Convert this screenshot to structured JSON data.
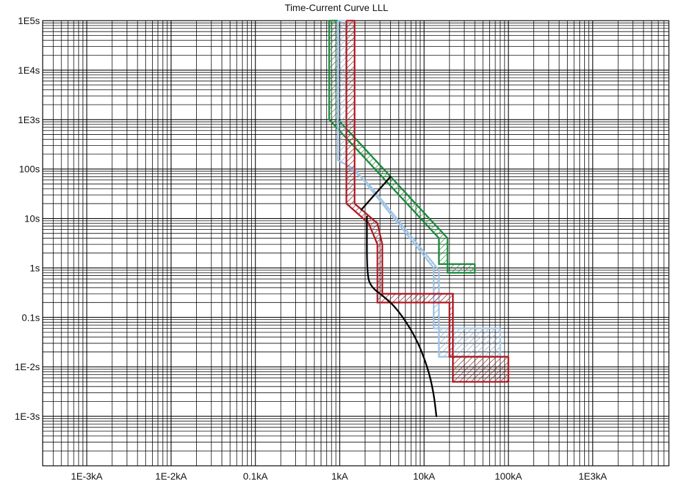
{
  "chart_data": {
    "type": "line",
    "title": "Time-Current Curve LLL",
    "x_scale": "log",
    "y_scale": "log",
    "xlim_kA": [
      0.0003,
      8000
    ],
    "ylim_s": [
      0.0001,
      100000
    ],
    "grid": true,
    "x_ticks": [
      {
        "value": 0.001,
        "label": "1E-3kA"
      },
      {
        "value": 0.01,
        "label": "1E-2kA"
      },
      {
        "value": 0.1,
        "label": "0.1kA"
      },
      {
        "value": 1,
        "label": "1kA"
      },
      {
        "value": 10,
        "label": "10kA"
      },
      {
        "value": 100,
        "label": "100kA"
      },
      {
        "value": 1000,
        "label": "1E3kA"
      }
    ],
    "y_ticks": [
      {
        "value": 100000,
        "label": "1E5s"
      },
      {
        "value": 10000,
        "label": "1E4s"
      },
      {
        "value": 1000,
        "label": "1E3s"
      },
      {
        "value": 100,
        "label": "100s"
      },
      {
        "value": 10,
        "label": "10s"
      },
      {
        "value": 1,
        "label": "1s"
      },
      {
        "value": 0.1,
        "label": "0.1s"
      },
      {
        "value": 0.01,
        "label": "1E-2s"
      },
      {
        "value": 0.001,
        "label": "1E-3s"
      }
    ],
    "bands": [
      {
        "color": "#1a8a3a",
        "curve": [
          [
            0.75,
            100000
          ],
          [
            0.75,
            1000
          ],
          [
            15,
            4
          ],
          [
            15,
            1.2
          ],
          [
            40,
            1.2
          ]
        ],
        "curve_upper": [
          [
            0.95,
            100000
          ],
          [
            0.95,
            1000
          ],
          [
            19,
            4
          ],
          [
            19,
            0.8
          ],
          [
            40,
            0.8
          ]
        ],
        "hatch": "#1a8a3a"
      },
      {
        "color": "#a0c4e4",
        "curve": [
          [
            0.95,
            100000
          ],
          [
            0.95,
            150
          ],
          [
            1.5,
            100
          ],
          [
            13,
            1.0
          ],
          [
            13,
            0.06
          ],
          [
            80,
            0.06
          ]
        ],
        "curve_upper": [
          [
            1.2,
            100000
          ],
          [
            1.2,
            120
          ],
          [
            2.2,
            50
          ],
          [
            15,
            0.9
          ],
          [
            15,
            0.016
          ],
          [
            80,
            0.016
          ]
        ],
        "hatch": "#7fa3c8"
      },
      {
        "color": "#b01c24",
        "curve": [
          [
            1.2,
            100000
          ],
          [
            1.2,
            20
          ],
          [
            2.2,
            8
          ],
          [
            2.8,
            3
          ],
          [
            2.8,
            0.2
          ],
          [
            20,
            0.2
          ],
          [
            20,
            0.016
          ],
          [
            100,
            0.016
          ]
        ],
        "curve_upper": [
          [
            1.5,
            100000
          ],
          [
            1.5,
            20
          ],
          [
            2.8,
            8
          ],
          [
            3.2,
            3
          ],
          [
            3.2,
            0.3
          ],
          [
            22,
            0.3
          ],
          [
            22,
            0.005
          ],
          [
            100,
            0.005
          ]
        ],
        "hatch": "#8a1a1a"
      }
    ],
    "curves": [
      {
        "color": "#000000",
        "points": [
          [
            1.8,
            15
          ],
          [
            4,
            70
          ]
        ]
      },
      {
        "color": "#000000",
        "points": [
          [
            2.1,
            11
          ],
          [
            2.1,
            0.7
          ],
          [
            2.4,
            0.4
          ],
          [
            3.2,
            0.28
          ],
          [
            4.8,
            0.15
          ],
          [
            8,
            0.04
          ],
          [
            11,
            0.01
          ],
          [
            13,
            0.003
          ],
          [
            14,
            0.001
          ]
        ]
      }
    ]
  }
}
